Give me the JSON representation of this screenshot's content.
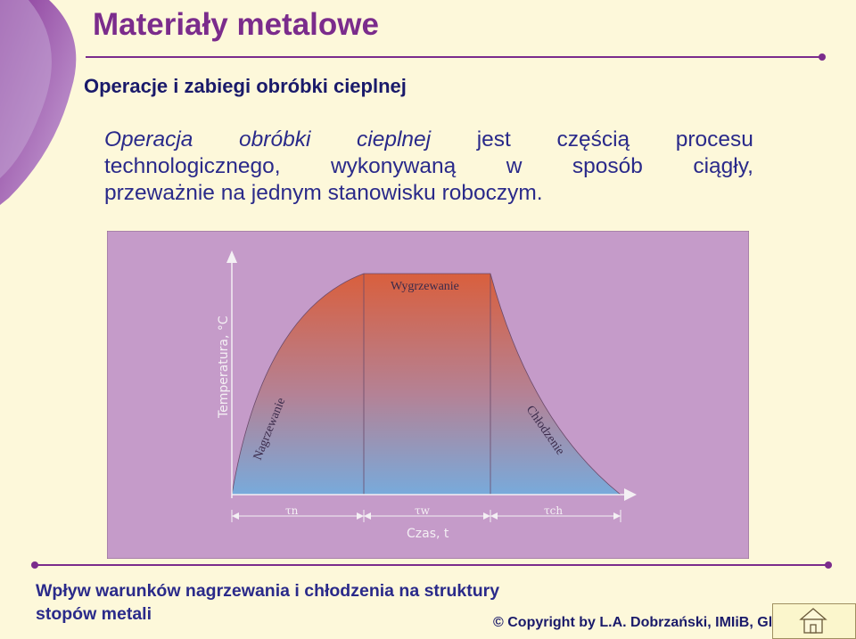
{
  "header": {
    "title": "Materiały metalowe",
    "subtitle": "Operacje i zabiegi obróbki cieplnej"
  },
  "paragraph": {
    "line1_words": [
      "Operacja",
      "obróbki",
      "cieplnej",
      "jest",
      "częścią",
      "procesu"
    ],
    "line2_words": [
      "technologicznego,",
      "wykonywaną",
      "w",
      "sposób",
      "ciągły,"
    ],
    "line3": "przeważnie na jednym stanowisku roboczym."
  },
  "diagram": {
    "y_axis_label": "Temperatura, °C",
    "x_axis_label": "Czas, t",
    "phase_labels": {
      "heating": "Nagrzewanie",
      "soaking": "Wygrzewanie",
      "cooling": "Chłodzenie"
    },
    "time_labels": [
      "τn",
      "τw",
      "τch"
    ],
    "colors": {
      "panel": "#c59bc9",
      "top": "#d95f3d",
      "bottom": "#78aadb"
    }
  },
  "footer": {
    "line1": "Wpływ warunków nagrzewania i chłodzenia na struktury",
    "line2": "stopów metali",
    "copyright": "© Copyright by L.A. Dobrzański, IMIiB, Gl"
  },
  "icons": {
    "home": "home-icon"
  }
}
